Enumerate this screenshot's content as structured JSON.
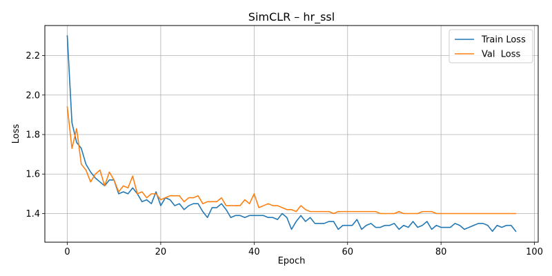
{
  "chart_data": {
    "type": "line",
    "title": "SimCLR – hr_ssl",
    "xlabel": "Epoch",
    "ylabel": "Loss",
    "xlim": [
      -4.8,
      100.8
    ],
    "ylim": [
      1.255,
      2.352
    ],
    "xticks": [
      0,
      20,
      40,
      60,
      80,
      100
    ],
    "yticks": [
      1.4,
      1.6,
      1.8,
      2.0,
      2.2
    ],
    "ytick_labels": [
      "1.4",
      "1.6",
      "1.8",
      "2.0",
      "2.2"
    ],
    "grid": true,
    "legend_position": "top-right",
    "series": [
      {
        "name": "Train Loss",
        "color": "#1f77b4",
        "values": [
          2.3,
          1.86,
          1.76,
          1.73,
          1.65,
          1.61,
          1.58,
          1.56,
          1.54,
          1.57,
          1.57,
          1.5,
          1.51,
          1.5,
          1.53,
          1.5,
          1.46,
          1.47,
          1.45,
          1.51,
          1.44,
          1.48,
          1.47,
          1.44,
          1.45,
          1.42,
          1.44,
          1.45,
          1.45,
          1.41,
          1.38,
          1.43,
          1.43,
          1.45,
          1.42,
          1.38,
          1.39,
          1.39,
          1.38,
          1.39,
          1.39,
          1.39,
          1.39,
          1.38,
          1.38,
          1.37,
          1.4,
          1.38,
          1.32,
          1.36,
          1.39,
          1.36,
          1.38,
          1.35,
          1.35,
          1.35,
          1.36,
          1.36,
          1.32,
          1.34,
          1.34,
          1.34,
          1.37,
          1.32,
          1.34,
          1.35,
          1.33,
          1.33,
          1.34,
          1.34,
          1.35,
          1.32,
          1.34,
          1.33,
          1.36,
          1.33,
          1.34,
          1.36,
          1.32,
          1.34,
          1.33,
          1.33,
          1.33,
          1.35,
          1.34,
          1.32,
          1.33,
          1.34,
          1.35,
          1.35,
          1.34,
          1.31,
          1.34,
          1.33,
          1.34,
          1.34,
          1.31
        ]
      },
      {
        "name": "Val  Loss",
        "color": "#ff7f0e",
        "values": [
          1.94,
          1.73,
          1.83,
          1.65,
          1.62,
          1.56,
          1.6,
          1.62,
          1.54,
          1.61,
          1.57,
          1.51,
          1.54,
          1.53,
          1.59,
          1.5,
          1.51,
          1.48,
          1.5,
          1.5,
          1.47,
          1.48,
          1.49,
          1.49,
          1.49,
          1.46,
          1.48,
          1.48,
          1.49,
          1.45,
          1.46,
          1.46,
          1.46,
          1.48,
          1.44,
          1.44,
          1.44,
          1.44,
          1.47,
          1.45,
          1.5,
          1.43,
          1.44,
          1.45,
          1.44,
          1.44,
          1.43,
          1.42,
          1.42,
          1.41,
          1.44,
          1.42,
          1.41,
          1.41,
          1.41,
          1.41,
          1.41,
          1.4,
          1.41,
          1.41,
          1.41,
          1.41,
          1.41,
          1.41,
          1.41,
          1.41,
          1.41,
          1.4,
          1.4,
          1.4,
          1.4,
          1.41,
          1.4,
          1.4,
          1.4,
          1.4,
          1.41,
          1.41,
          1.41,
          1.4,
          1.4,
          1.4,
          1.4,
          1.4,
          1.4,
          1.4,
          1.4,
          1.4,
          1.4,
          1.4,
          1.4,
          1.4,
          1.4,
          1.4,
          1.4,
          1.4,
          1.4
        ]
      }
    ]
  }
}
